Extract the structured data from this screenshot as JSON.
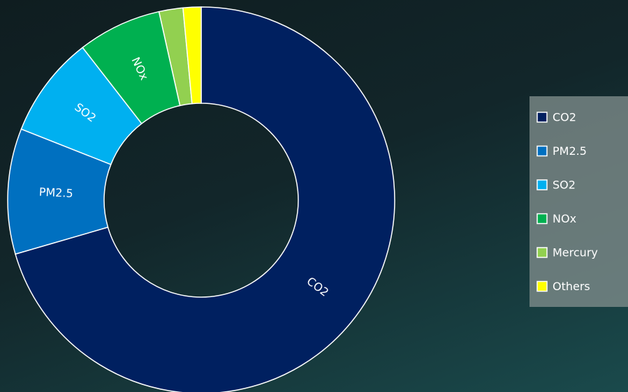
{
  "chart_data": {
    "type": "donut",
    "categories": [
      "CO2",
      "PM2.5",
      "SO2",
      "NOx",
      "Mercury",
      "Others"
    ],
    "values": [
      70.5,
      10.5,
      8.5,
      7,
      2,
      1.5
    ],
    "colors": [
      "#002060",
      "#0070c0",
      "#00b0f0",
      "#00b050",
      "#92d050",
      "#ffff00"
    ],
    "legend": "right"
  }
}
